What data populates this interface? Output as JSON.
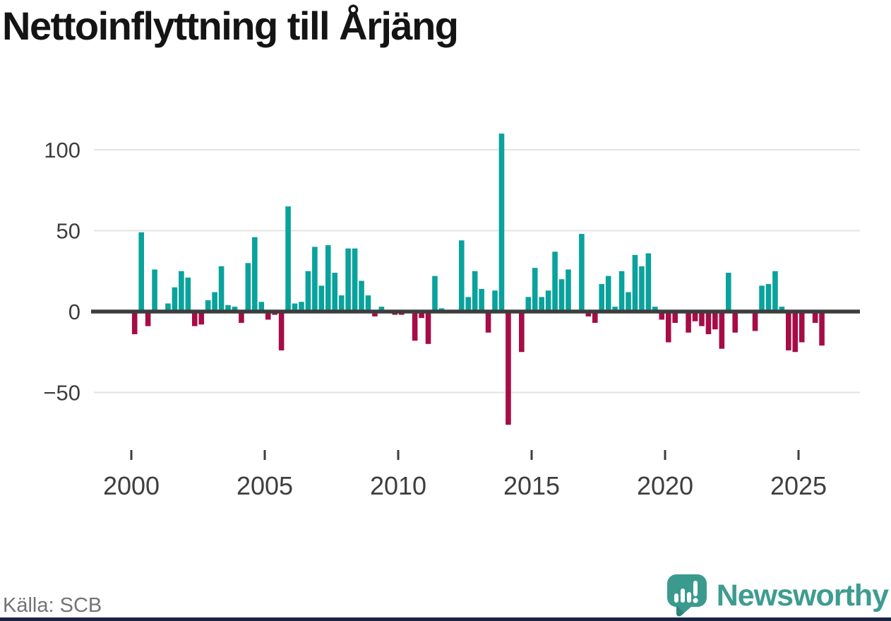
{
  "title": "Nettoinflyttning till Årjäng",
  "source": "Källa: SCB",
  "brand": {
    "name": "Newsworthy"
  },
  "colors": {
    "positive": "#0aa29c",
    "negative": "#a60c46",
    "grid": "#e3e3e3",
    "zero_line": "#3d3d3d",
    "axis_text": "#3e3e3e",
    "title_text": "#141414",
    "source_text": "#747474",
    "brand_teal": "#3a9a8e",
    "brand_teal_dark": "#2d8478",
    "wordmark": "#3e9c90",
    "bottom_border": "#1a2342"
  },
  "chart_data": {
    "type": "bar",
    "title": "Nettoinflyttning till Årjäng",
    "frequency": "quarterly",
    "start": "2000Q1",
    "end": "2025Q4",
    "xlabel": "",
    "ylabel": "",
    "grid": true,
    "ylim": [
      -75,
      115
    ],
    "yticks": [
      {
        "value": 100,
        "label": "100"
      },
      {
        "value": 50,
        "label": "50"
      },
      {
        "value": 0,
        "label": "0"
      },
      {
        "value": -50,
        "label": "−50"
      }
    ],
    "xticks": [
      {
        "year": 2000,
        "label": "2000"
      },
      {
        "year": 2005,
        "label": "2005"
      },
      {
        "year": 2010,
        "label": "2010"
      },
      {
        "year": 2015,
        "label": "2015"
      },
      {
        "year": 2020,
        "label": "2020"
      },
      {
        "year": 2025,
        "label": "2025"
      }
    ],
    "values": [
      -14,
      49,
      -9,
      26,
      0,
      5,
      15,
      25,
      21,
      -9,
      -8,
      7,
      12,
      28,
      4,
      3,
      -7,
      30,
      46,
      6,
      -5,
      -2,
      -24,
      65,
      5,
      6,
      25,
      40,
      16,
      41,
      24,
      10,
      39,
      39,
      19,
      10,
      -3,
      3,
      0,
      -2,
      -2,
      0,
      -18,
      -4,
      -20,
      22,
      2,
      0,
      0,
      44,
      9,
      25,
      14,
      -13,
      13,
      110,
      -70,
      0,
      -25,
      9,
      27,
      9,
      13,
      37,
      20,
      26,
      0,
      48,
      -3,
      -7,
      17,
      22,
      3,
      25,
      12,
      35,
      28,
      36,
      3,
      -5,
      -19,
      -7,
      0,
      -13,
      -6,
      -9,
      -14,
      -11,
      -23,
      24,
      -13,
      0,
      0,
      -12,
      16,
      17,
      25,
      3,
      -24,
      -25,
      -19,
      0,
      -7,
      -21
    ]
  }
}
